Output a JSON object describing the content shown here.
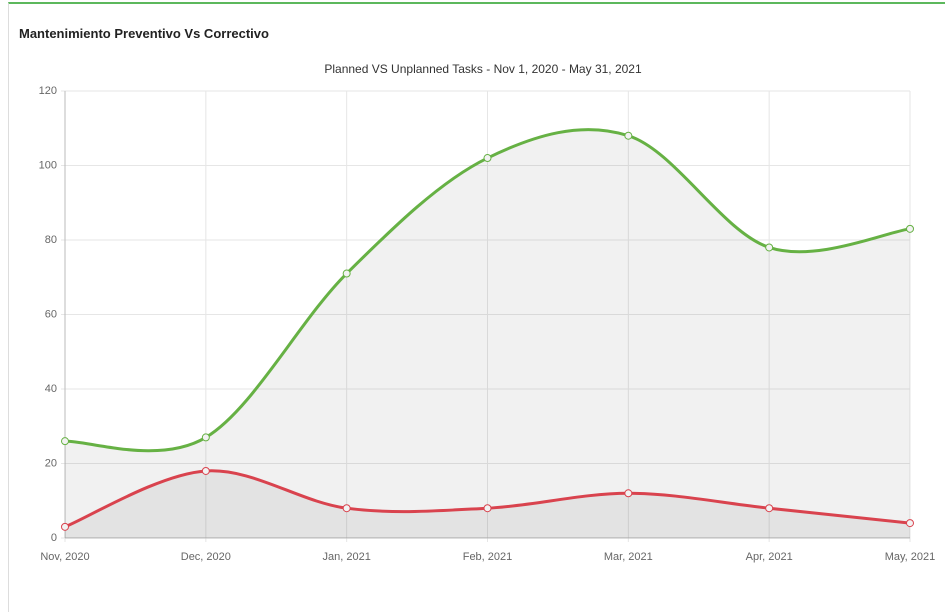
{
  "panel_title": "Mantenimiento Preventivo Vs Correctivo",
  "chart_data": {
    "type": "line",
    "title": "Planned VS Unplanned Tasks - Nov 1, 2020 - May 31, 2021",
    "categories": [
      "Nov, 2020",
      "Dec, 2020",
      "Jan, 2021",
      "Feb, 2021",
      "Mar, 2021",
      "Apr, 2021",
      "May, 2021"
    ],
    "series": [
      {
        "color": "#66b144",
        "values": [
          26,
          27,
          71,
          102,
          108,
          78,
          83
        ]
      },
      {
        "color": "#d9434e",
        "values": [
          3,
          18,
          8,
          8,
          12,
          8,
          4
        ]
      }
    ],
    "ylim": [
      0,
      120
    ],
    "yticks": [
      0,
      20,
      40,
      60,
      80,
      100,
      120
    ],
    "grid": true,
    "smooth": true,
    "fill": true
  }
}
